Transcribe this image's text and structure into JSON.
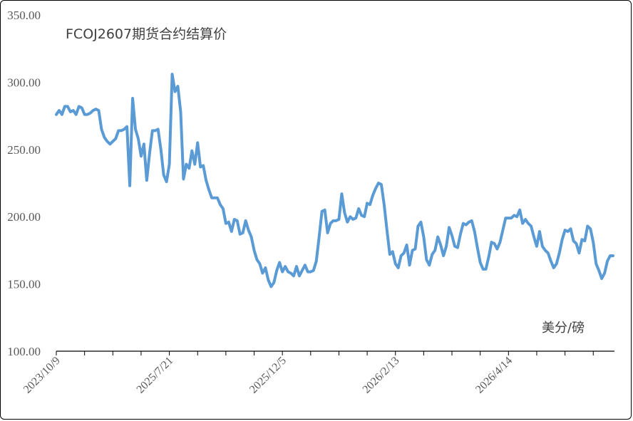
{
  "chart_data": {
    "type": "line",
    "title": "FCOJ2607期货合约结算价",
    "unit_label": "美分/磅",
    "ylim": [
      100,
      350
    ],
    "y_ticks": [
      "100.00",
      "150.00",
      "200.00",
      "250.00",
      "300.00",
      "350.00"
    ],
    "x_tick_labels": [
      {
        "label": "2023/10/9",
        "index": 0
      },
      {
        "label": "2025/7/21",
        "index": 40
      },
      {
        "label": "2025/12/5",
        "index": 80
      },
      {
        "label": "2026/2/13",
        "index": 120
      },
      {
        "label": "2026/4/14",
        "index": 160
      }
    ],
    "grid": false,
    "line_color": "#5B9BD5",
    "series": [
      {
        "values": [
          276,
          279,
          276,
          282,
          282,
          278,
          279,
          276,
          282,
          281,
          276,
          276,
          277,
          279,
          280,
          279,
          265,
          259,
          256,
          254,
          256,
          258,
          264,
          264,
          265,
          267,
          223,
          288,
          265,
          258,
          245,
          254,
          227,
          247,
          264,
          264,
          265,
          250,
          231,
          226,
          239,
          306,
          293,
          297,
          278,
          228,
          239,
          236,
          249,
          239,
          255,
          237,
          238,
          227,
          220,
          214,
          214,
          214,
          209,
          206,
          195,
          196,
          189,
          198,
          197,
          187,
          188,
          197,
          190,
          185,
          175,
          168,
          165,
          158,
          162,
          153,
          148,
          151,
          160,
          166,
          159,
          163,
          159,
          158,
          156,
          163,
          156,
          160,
          164,
          159,
          159,
          160,
          167,
          185,
          204,
          205,
          188,
          195,
          197,
          197,
          198,
          217,
          203,
          196,
          200,
          198,
          199,
          206,
          201,
          200,
          210,
          209,
          216,
          221,
          225,
          224,
          209,
          190,
          172,
          174,
          165,
          162,
          171,
          173,
          179,
          164,
          175,
          176,
          193,
          196,
          185,
          168,
          164,
          172,
          175,
          185,
          179,
          171,
          178,
          192,
          186,
          178,
          177,
          187,
          195,
          194,
          196,
          197,
          189,
          177,
          166,
          161,
          161,
          170,
          181,
          180,
          176,
          181,
          190,
          199,
          199,
          199,
          201,
          200,
          205,
          195,
          198,
          195,
          193,
          185,
          178,
          189,
          178,
          175,
          173,
          167,
          162,
          165,
          173,
          183,
          190,
          189,
          191,
          182,
          180,
          173,
          183,
          182,
          193,
          191,
          181,
          165,
          160,
          154,
          158,
          167,
          171,
          171
        ]
      }
    ]
  }
}
